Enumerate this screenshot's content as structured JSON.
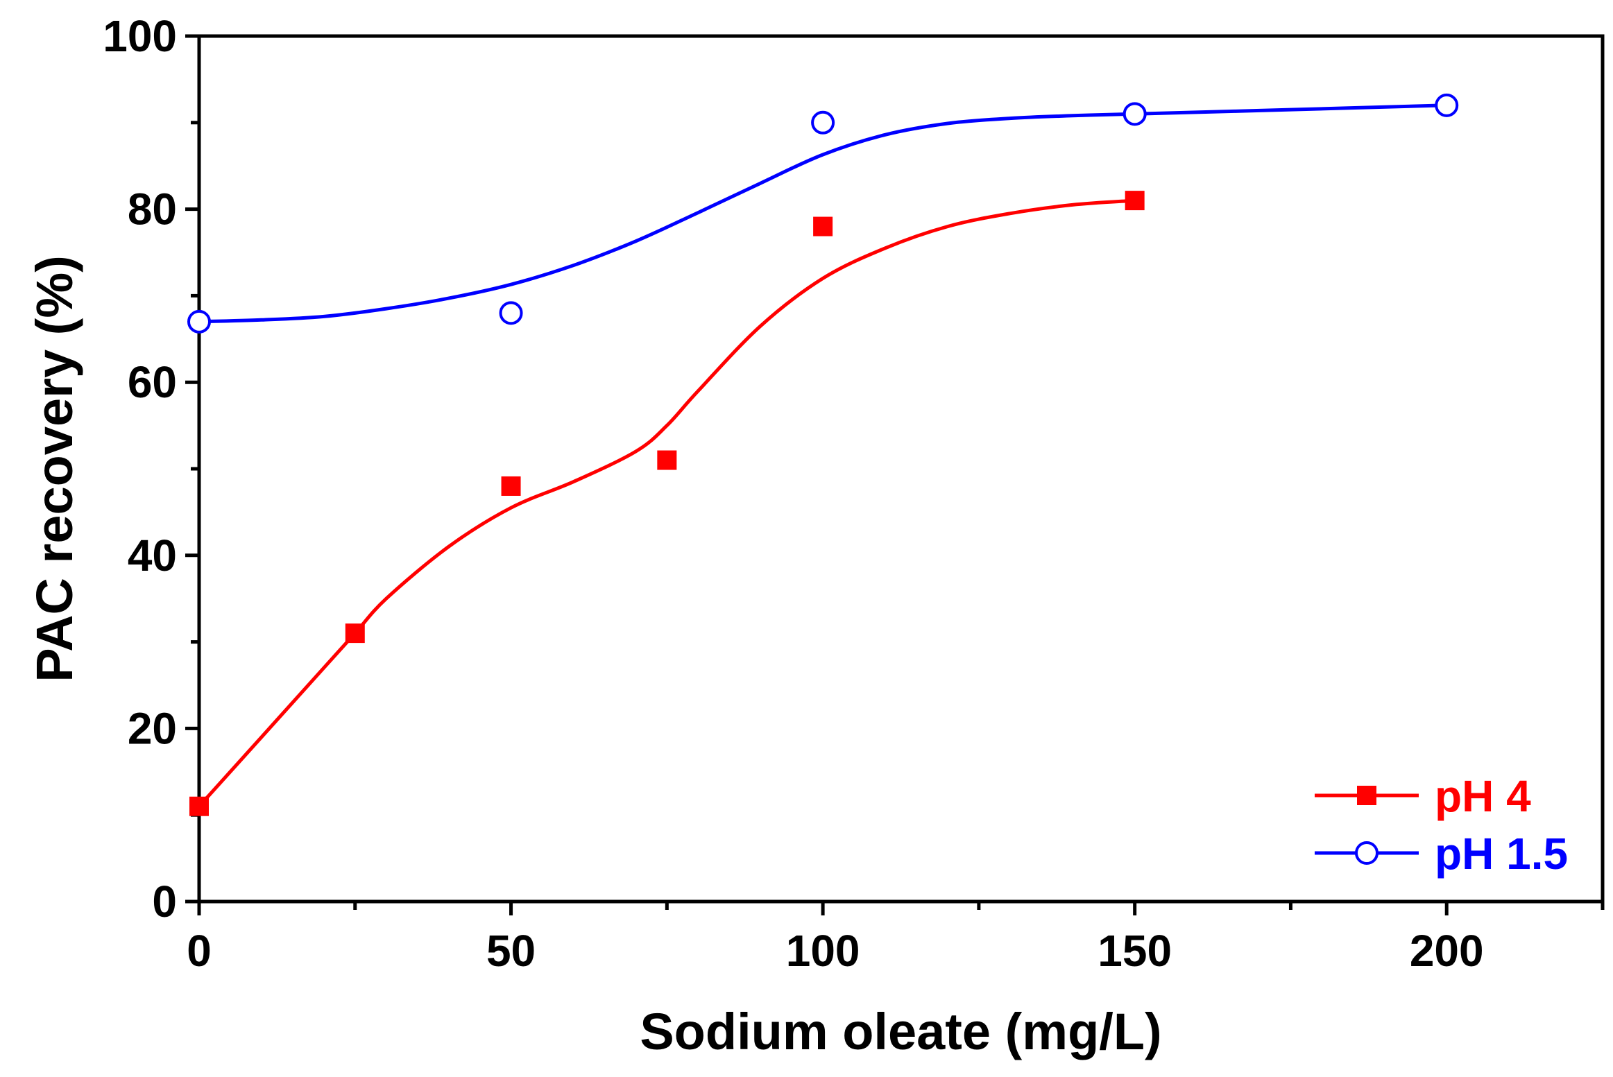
{
  "chart_data": {
    "type": "scatter",
    "title": "",
    "xlabel": "Sodium oleate (mg/L)",
    "ylabel": "PAC recovery (%)",
    "xlim": [
      0,
      225
    ],
    "ylim": [
      0,
      100
    ],
    "xticks": [
      0,
      50,
      100,
      150,
      200
    ],
    "yticks": [
      0,
      20,
      40,
      60,
      80,
      100
    ],
    "xminor": [
      25,
      75,
      125,
      175,
      225
    ],
    "yminor": [
      10,
      30,
      50,
      70,
      90
    ],
    "xtick_labels": [
      "0",
      "50",
      "100",
      "150",
      "200"
    ],
    "ytick_labels": [
      "0",
      "20",
      "40",
      "60",
      "80",
      "100"
    ],
    "grid": false,
    "legend_position": "bottom-right",
    "series": [
      {
        "name": "pH 4",
        "color": "#ff0000",
        "marker": "filled-square",
        "x": [
          0,
          25,
          50,
          75,
          100,
          150
        ],
        "y": [
          11,
          31,
          48,
          51,
          78,
          81
        ],
        "fit": [
          [
            0,
            11
          ],
          [
            10,
            19
          ],
          [
            20,
            27
          ],
          [
            25,
            31
          ],
          [
            30,
            35
          ],
          [
            40,
            41
          ],
          [
            50,
            45.5
          ],
          [
            60,
            48.5
          ],
          [
            70,
            52
          ],
          [
            75,
            55
          ],
          [
            80,
            59
          ],
          [
            90,
            66.5
          ],
          [
            100,
            72
          ],
          [
            110,
            75.5
          ],
          [
            120,
            78
          ],
          [
            130,
            79.5
          ],
          [
            140,
            80.5
          ],
          [
            150,
            81
          ]
        ]
      },
      {
        "name": "pH 1.5",
        "color": "#0000ff",
        "marker": "open-circle",
        "x": [
          0,
          50,
          100,
          150,
          200
        ],
        "y": [
          67,
          68,
          90,
          91,
          92
        ],
        "fit": [
          [
            0,
            67
          ],
          [
            10,
            67.2
          ],
          [
            20,
            67.6
          ],
          [
            30,
            68.5
          ],
          [
            40,
            69.7
          ],
          [
            50,
            71.3
          ],
          [
            60,
            73.5
          ],
          [
            70,
            76.3
          ],
          [
            80,
            79.6
          ],
          [
            90,
            83
          ],
          [
            100,
            86.3
          ],
          [
            110,
            88.6
          ],
          [
            120,
            89.9
          ],
          [
            130,
            90.5
          ],
          [
            140,
            90.8
          ],
          [
            150,
            91
          ],
          [
            175,
            91.5
          ],
          [
            200,
            92
          ]
        ]
      }
    ]
  }
}
